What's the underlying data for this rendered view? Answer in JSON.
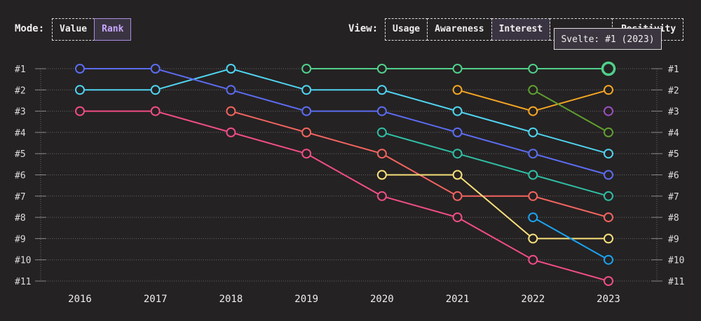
{
  "mode": {
    "label": "Mode:",
    "options": [
      "Value",
      "Rank"
    ],
    "selected": "Rank"
  },
  "view": {
    "label": "View:",
    "options": [
      "Usage",
      "Awareness",
      "Interest",
      "",
      "Positivity"
    ],
    "selected": "Interest"
  },
  "tooltip": {
    "text": "Svelte: #1 (2023)"
  },
  "chart_data": {
    "type": "line",
    "subtype": "bump/rank",
    "x": [
      "2016",
      "2017",
      "2018",
      "2019",
      "2020",
      "2021",
      "2022",
      "2023"
    ],
    "y_ticks": [
      "#1",
      "#2",
      "#3",
      "#4",
      "#5",
      "#6",
      "#7",
      "#8",
      "#9",
      "#10",
      "#11"
    ],
    "ylim": [
      1,
      11
    ],
    "y_inverted": true,
    "grid": true,
    "series": [
      {
        "name": "Svelte",
        "color": "#4fd08a",
        "values": [
          null,
          null,
          null,
          1,
          1,
          1,
          1,
          1
        ]
      },
      {
        "color": "#4fd4f0",
        "values": [
          2,
          2,
          1,
          2,
          2,
          3,
          4,
          5
        ]
      },
      {
        "color": "#5b6cf0",
        "values": [
          1,
          1,
          2,
          3,
          3,
          4,
          5,
          6
        ]
      },
      {
        "color": "#f04d86",
        "values": [
          3,
          3,
          4,
          5,
          7,
          8,
          10,
          11
        ]
      },
      {
        "color": "#f2645f",
        "values": [
          null,
          null,
          3,
          4,
          5,
          7,
          7,
          8
        ]
      },
      {
        "color": "#2ebfa5",
        "values": [
          null,
          null,
          null,
          null,
          4,
          5,
          6,
          7
        ]
      },
      {
        "color": "#f8e07a",
        "values": [
          null,
          null,
          null,
          null,
          6,
          6,
          9,
          9
        ]
      },
      {
        "color": "#f5a623",
        "values": [
          null,
          null,
          null,
          null,
          null,
          2,
          3,
          2
        ]
      },
      {
        "color": "#5fa030",
        "values": [
          null,
          null,
          null,
          null,
          null,
          null,
          2,
          4
        ]
      },
      {
        "color": "#1aa3f0",
        "values": [
          null,
          null,
          null,
          null,
          null,
          null,
          8,
          10
        ]
      },
      {
        "color": "#9b4fc0",
        "values": [
          null,
          null,
          null,
          null,
          null,
          null,
          null,
          3
        ]
      }
    ],
    "highlight": {
      "series": "Svelte",
      "x": "2023"
    }
  }
}
